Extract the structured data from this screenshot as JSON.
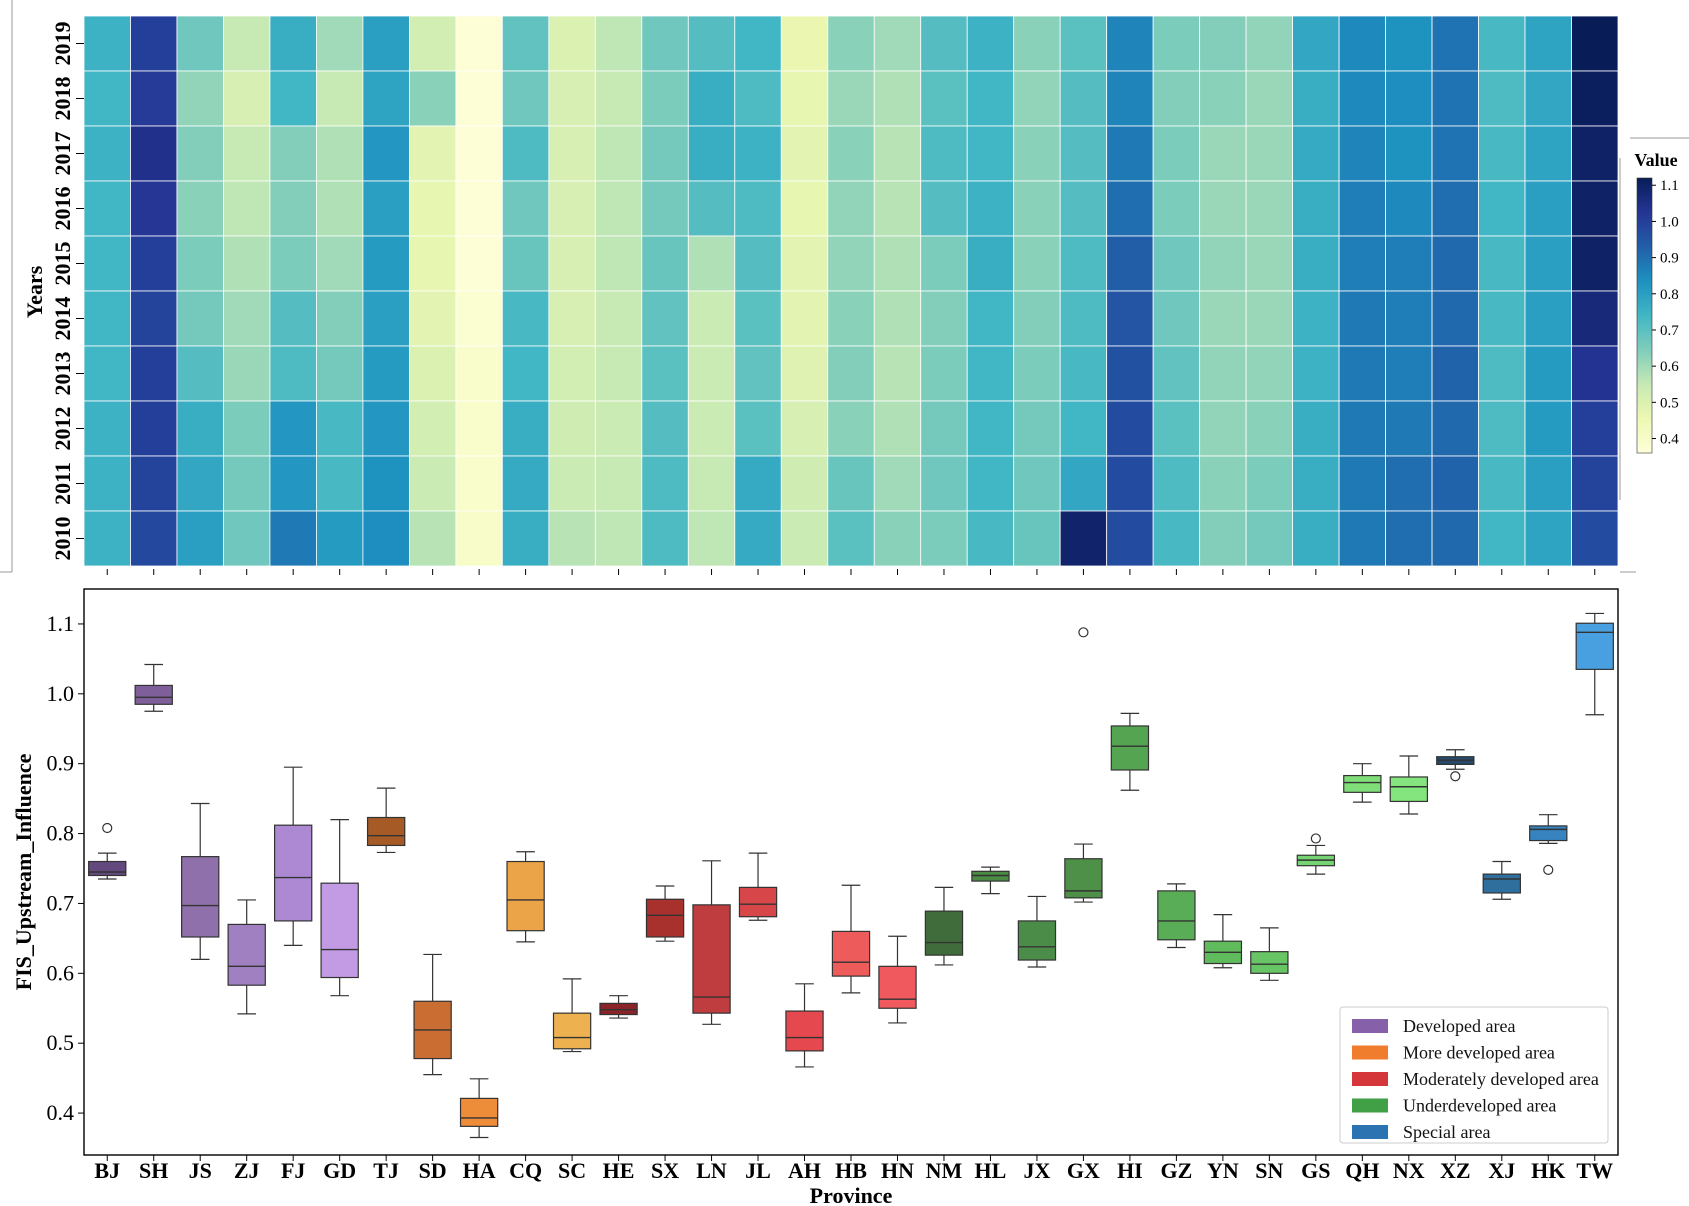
{
  "chart_data": [
    {
      "type": "heatmap",
      "title": "",
      "ylabel": "Years",
      "colorbar_title": "Value",
      "colorbar_ticks": [
        "0.4",
        "0.5",
        "0.6",
        "0.7",
        "0.8",
        "0.9",
        "1.0",
        "1.1"
      ],
      "colorbar_range": [
        0.36,
        1.12
      ],
      "colormap": "YlGnBu",
      "x_categories": [
        "BJ",
        "SH",
        "JS",
        "ZJ",
        "FJ",
        "GD",
        "TJ",
        "SD",
        "HA",
        "CQ",
        "SC",
        "HE",
        "SX",
        "LN",
        "JL",
        "AH",
        "HB",
        "HN",
        "NM",
        "HL",
        "JX",
        "GX",
        "HI",
        "GZ",
        "YN",
        "SN",
        "GS",
        "QH",
        "NX",
        "XZ",
        "XJ",
        "HK",
        "TW"
      ],
      "y_categories": [
        "2019",
        "2018",
        "2017",
        "2016",
        "2015",
        "2014",
        "2013",
        "2012",
        "2011",
        "2010"
      ],
      "values": [
        [
          0.75,
          1.0,
          0.67,
          0.55,
          0.76,
          0.6,
          0.8,
          0.52,
          0.37,
          0.69,
          0.5,
          0.56,
          0.67,
          0.71,
          0.74,
          0.46,
          0.63,
          0.6,
          0.71,
          0.75,
          0.63,
          0.7,
          0.86,
          0.65,
          0.64,
          0.62,
          0.78,
          0.85,
          0.83,
          0.89,
          0.73,
          0.79,
          1.12
        ],
        [
          0.74,
          1.01,
          0.62,
          0.51,
          0.74,
          0.55,
          0.79,
          0.63,
          0.37,
          0.67,
          0.51,
          0.55,
          0.65,
          0.76,
          0.72,
          0.47,
          0.61,
          0.58,
          0.7,
          0.74,
          0.62,
          0.71,
          0.86,
          0.64,
          0.63,
          0.61,
          0.76,
          0.85,
          0.84,
          0.89,
          0.72,
          0.78,
          1.11
        ],
        [
          0.75,
          1.04,
          0.64,
          0.55,
          0.64,
          0.58,
          0.82,
          0.48,
          0.37,
          0.72,
          0.51,
          0.56,
          0.66,
          0.76,
          0.75,
          0.48,
          0.63,
          0.57,
          0.72,
          0.74,
          0.63,
          0.71,
          0.88,
          0.65,
          0.61,
          0.61,
          0.77,
          0.86,
          0.83,
          0.89,
          0.73,
          0.79,
          1.1
        ],
        [
          0.74,
          1.02,
          0.63,
          0.56,
          0.64,
          0.58,
          0.8,
          0.47,
          0.37,
          0.67,
          0.51,
          0.56,
          0.66,
          0.71,
          0.72,
          0.47,
          0.62,
          0.57,
          0.71,
          0.75,
          0.63,
          0.71,
          0.9,
          0.65,
          0.61,
          0.61,
          0.76,
          0.87,
          0.85,
          0.9,
          0.74,
          0.8,
          1.1
        ],
        [
          0.74,
          1.0,
          0.65,
          0.58,
          0.65,
          0.6,
          0.81,
          0.47,
          0.37,
          0.68,
          0.51,
          0.56,
          0.68,
          0.58,
          0.71,
          0.48,
          0.62,
          0.58,
          0.65,
          0.76,
          0.63,
          0.72,
          0.93,
          0.67,
          0.62,
          0.61,
          0.76,
          0.87,
          0.87,
          0.91,
          0.73,
          0.8,
          1.1
        ],
        [
          0.74,
          0.99,
          0.66,
          0.6,
          0.71,
          0.64,
          0.8,
          0.48,
          0.38,
          0.73,
          0.51,
          0.55,
          0.69,
          0.54,
          0.7,
          0.48,
          0.63,
          0.58,
          0.64,
          0.74,
          0.64,
          0.72,
          0.95,
          0.67,
          0.61,
          0.61,
          0.75,
          0.88,
          0.87,
          0.91,
          0.73,
          0.8,
          1.07
        ],
        [
          0.74,
          1.0,
          0.71,
          0.61,
          0.72,
          0.66,
          0.81,
          0.5,
          0.39,
          0.74,
          0.52,
          0.55,
          0.7,
          0.54,
          0.69,
          0.49,
          0.64,
          0.57,
          0.65,
          0.74,
          0.65,
          0.73,
          0.96,
          0.69,
          0.62,
          0.62,
          0.75,
          0.88,
          0.87,
          0.92,
          0.72,
          0.81,
          1.03
        ],
        [
          0.75,
          1.0,
          0.76,
          0.65,
          0.82,
          0.73,
          0.82,
          0.52,
          0.39,
          0.76,
          0.53,
          0.54,
          0.71,
          0.54,
          0.7,
          0.51,
          0.63,
          0.58,
          0.66,
          0.74,
          0.66,
          0.74,
          0.97,
          0.7,
          0.62,
          0.63,
          0.76,
          0.88,
          0.88,
          0.91,
          0.72,
          0.81,
          1.0
        ],
        [
          0.75,
          0.99,
          0.78,
          0.66,
          0.82,
          0.73,
          0.83,
          0.54,
          0.39,
          0.77,
          0.54,
          0.55,
          0.72,
          0.55,
          0.77,
          0.53,
          0.68,
          0.6,
          0.67,
          0.74,
          0.67,
          0.78,
          0.97,
          0.72,
          0.63,
          0.65,
          0.76,
          0.88,
          0.9,
          0.92,
          0.73,
          0.8,
          0.99
        ],
        [
          0.75,
          0.98,
          0.8,
          0.67,
          0.88,
          0.81,
          0.84,
          0.57,
          0.4,
          0.76,
          0.57,
          0.56,
          0.72,
          0.56,
          0.77,
          0.54,
          0.7,
          0.63,
          0.65,
          0.73,
          0.68,
          1.09,
          0.97,
          0.73,
          0.64,
          0.66,
          0.76,
          0.88,
          0.9,
          0.91,
          0.74,
          0.79,
          0.97
        ]
      ]
    },
    {
      "type": "box",
      "title": "",
      "xlabel": "Province",
      "ylabel": "FIS_Upstream_Influence",
      "ylim": [
        0.34,
        1.15
      ],
      "yticks": [
        "0.4",
        "0.5",
        "0.6",
        "0.7",
        "0.8",
        "0.9",
        "1.0",
        "1.1"
      ],
      "categories": [
        "BJ",
        "SH",
        "JS",
        "ZJ",
        "FJ",
        "GD",
        "TJ",
        "SD",
        "HA",
        "CQ",
        "SC",
        "HE",
        "SX",
        "LN",
        "JL",
        "AH",
        "HB",
        "HN",
        "NM",
        "HL",
        "JX",
        "GX",
        "HI",
        "GZ",
        "YN",
        "SN",
        "GS",
        "QH",
        "NX",
        "XZ",
        "XJ",
        "HK",
        "TW"
      ],
      "group_of": [
        "Developed area",
        "Developed area",
        "Developed area",
        "Developed area",
        "Developed area",
        "Developed area",
        "More developed area",
        "More developed area",
        "More developed area",
        "More developed area",
        "More developed area",
        "Moderately developed area",
        "Moderately developed area",
        "Moderately developed area",
        "Moderately developed area",
        "Moderately developed area",
        "Moderately developed area",
        "Moderately developed area",
        "Underdeveloped area",
        "Underdeveloped area",
        "Underdeveloped area",
        "Underdeveloped area",
        "Underdeveloped area",
        "Underdeveloped area",
        "Underdeveloped area",
        "Underdeveloped area",
        "Underdeveloped area",
        "Underdeveloped area",
        "Underdeveloped area",
        "Special area",
        "Special area",
        "Special area",
        "Special area"
      ],
      "fill_colors": [
        "#64497f",
        "#7f5f99",
        "#8f70aa",
        "#a180c1",
        "#ad89d4",
        "#c39be4",
        "#a65b26",
        "#c96d33",
        "#ed8d39",
        "#eba447",
        "#edb24f",
        "#8a2429",
        "#a8312e",
        "#c03d3f",
        "#d74749",
        "#e5484e",
        "#ee5b5b",
        "#f0595e",
        "#3f6c3a",
        "#4b8b45",
        "#4c8c49",
        "#4f9049",
        "#55a452",
        "#5aad57",
        "#5fbb5c",
        "#68c565",
        "#75d373",
        "#7fde78",
        "#84e57e",
        "#27496b",
        "#2e6f9e",
        "#3683c0",
        "#48a0e0"
      ],
      "boxes": [
        {
          "q1": 0.74,
          "median": 0.745,
          "q3": 0.76,
          "whislo": 0.735,
          "whishi": 0.772,
          "fliers": [
            0.808
          ]
        },
        {
          "q1": 0.985,
          "median": 0.995,
          "q3": 1.012,
          "whislo": 0.975,
          "whishi": 1.042,
          "fliers": []
        },
        {
          "q1": 0.652,
          "median": 0.697,
          "q3": 0.767,
          "whislo": 0.62,
          "whishi": 0.843,
          "fliers": []
        },
        {
          "q1": 0.583,
          "median": 0.61,
          "q3": 0.67,
          "whislo": 0.542,
          "whishi": 0.705,
          "fliers": []
        },
        {
          "q1": 0.675,
          "median": 0.737,
          "q3": 0.812,
          "whislo": 0.64,
          "whishi": 0.895,
          "fliers": []
        },
        {
          "q1": 0.594,
          "median": 0.634,
          "q3": 0.729,
          "whislo": 0.568,
          "whishi": 0.82,
          "fliers": []
        },
        {
          "q1": 0.783,
          "median": 0.797,
          "q3": 0.823,
          "whislo": 0.773,
          "whishi": 0.865,
          "fliers": []
        },
        {
          "q1": 0.478,
          "median": 0.519,
          "q3": 0.56,
          "whislo": 0.455,
          "whishi": 0.627,
          "fliers": []
        },
        {
          "q1": 0.381,
          "median": 0.393,
          "q3": 0.421,
          "whislo": 0.365,
          "whishi": 0.449,
          "fliers": []
        },
        {
          "q1": 0.661,
          "median": 0.705,
          "q3": 0.76,
          "whislo": 0.645,
          "whishi": 0.774,
          "fliers": []
        },
        {
          "q1": 0.492,
          "median": 0.508,
          "q3": 0.543,
          "whislo": 0.488,
          "whishi": 0.592,
          "fliers": []
        },
        {
          "q1": 0.541,
          "median": 0.548,
          "q3": 0.557,
          "whislo": 0.536,
          "whishi": 0.568,
          "fliers": []
        },
        {
          "q1": 0.652,
          "median": 0.683,
          "q3": 0.706,
          "whislo": 0.646,
          "whishi": 0.725,
          "fliers": []
        },
        {
          "q1": 0.543,
          "median": 0.566,
          "q3": 0.698,
          "whislo": 0.527,
          "whishi": 0.761,
          "fliers": []
        },
        {
          "q1": 0.681,
          "median": 0.699,
          "q3": 0.723,
          "whislo": 0.676,
          "whishi": 0.772,
          "fliers": []
        },
        {
          "q1": 0.489,
          "median": 0.508,
          "q3": 0.546,
          "whislo": 0.466,
          "whishi": 0.585,
          "fliers": []
        },
        {
          "q1": 0.596,
          "median": 0.616,
          "q3": 0.66,
          "whislo": 0.572,
          "whishi": 0.726,
          "fliers": []
        },
        {
          "q1": 0.55,
          "median": 0.563,
          "q3": 0.61,
          "whislo": 0.529,
          "whishi": 0.653,
          "fliers": []
        },
        {
          "q1": 0.626,
          "median": 0.644,
          "q3": 0.689,
          "whislo": 0.612,
          "whishi": 0.723,
          "fliers": []
        },
        {
          "q1": 0.732,
          "median": 0.74,
          "q3": 0.746,
          "whislo": 0.714,
          "whishi": 0.752,
          "fliers": []
        },
        {
          "q1": 0.619,
          "median": 0.638,
          "q3": 0.675,
          "whislo": 0.609,
          "whishi": 0.71,
          "fliers": []
        },
        {
          "q1": 0.708,
          "median": 0.718,
          "q3": 0.764,
          "whislo": 0.702,
          "whishi": 0.785,
          "fliers": [
            1.088
          ]
        },
        {
          "q1": 0.891,
          "median": 0.925,
          "q3": 0.954,
          "whislo": 0.862,
          "whishi": 0.972,
          "fliers": []
        },
        {
          "q1": 0.648,
          "median": 0.675,
          "q3": 0.718,
          "whislo": 0.637,
          "whishi": 0.728,
          "fliers": []
        },
        {
          "q1": 0.614,
          "median": 0.63,
          "q3": 0.646,
          "whislo": 0.608,
          "whishi": 0.684,
          "fliers": []
        },
        {
          "q1": 0.6,
          "median": 0.613,
          "q3": 0.631,
          "whislo": 0.59,
          "whishi": 0.665,
          "fliers": []
        },
        {
          "q1": 0.754,
          "median": 0.762,
          "q3": 0.769,
          "whislo": 0.742,
          "whishi": 0.783,
          "fliers": [
            0.793
          ]
        },
        {
          "q1": 0.859,
          "median": 0.873,
          "q3": 0.883,
          "whislo": 0.845,
          "whishi": 0.9,
          "fliers": []
        },
        {
          "q1": 0.846,
          "median": 0.867,
          "q3": 0.881,
          "whislo": 0.828,
          "whishi": 0.911,
          "fliers": []
        },
        {
          "q1": 0.899,
          "median": 0.905,
          "q3": 0.91,
          "whislo": 0.892,
          "whishi": 0.92,
          "fliers": [
            0.882
          ]
        },
        {
          "q1": 0.715,
          "median": 0.735,
          "q3": 0.742,
          "whislo": 0.706,
          "whishi": 0.76,
          "fliers": []
        },
        {
          "q1": 0.79,
          "median": 0.806,
          "q3": 0.811,
          "whislo": 0.786,
          "whishi": 0.827,
          "fliers": [
            0.748
          ]
        },
        {
          "q1": 1.035,
          "median": 1.088,
          "q3": 1.101,
          "whislo": 0.97,
          "whishi": 1.115,
          "fliers": []
        }
      ],
      "legend": {
        "placement": "lower-right",
        "entries": [
          {
            "label": "Developed area",
            "color": "#8660a8"
          },
          {
            "label": "More developed area",
            "color": "#ef7d2d"
          },
          {
            "label": "Moderately developed area",
            "color": "#d4363a"
          },
          {
            "label": "Underdeveloped area",
            "color": "#41a046"
          },
          {
            "label": "Special area",
            "color": "#2c73b2"
          }
        ]
      }
    }
  ]
}
